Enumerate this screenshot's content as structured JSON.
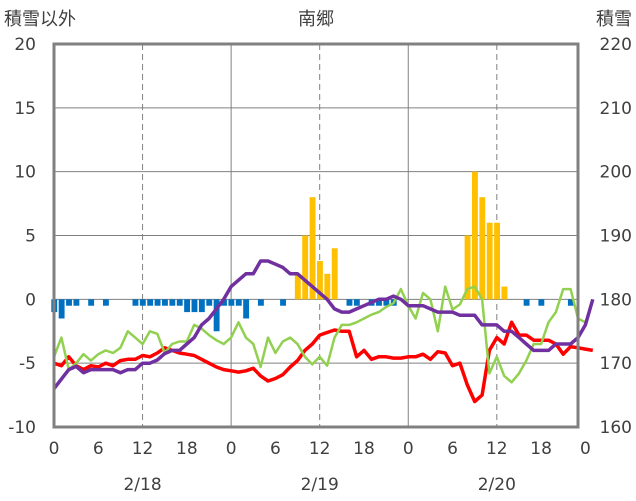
{
  "chart_data": {
    "type": "bar+line",
    "title": "南郷",
    "left_axis_title": "積雪以外",
    "right_axis_title": "積雪",
    "ylim_left": [
      -10,
      20
    ],
    "ylim_right": [
      160,
      220
    ],
    "yticks_left": [
      "20",
      "15",
      "10",
      "5",
      "0",
      "-5",
      "-10"
    ],
    "yticks_right": [
      "220",
      "210",
      "200",
      "190",
      "180",
      "170",
      "160"
    ],
    "xlim_hours": [
      0,
      71
    ],
    "xtick_labels": [
      "0",
      "6",
      "12",
      "18",
      "0",
      "6",
      "12",
      "18",
      "0",
      "6",
      "12",
      "18",
      "0"
    ],
    "date_labels": [
      "2/18",
      "2/19",
      "2/20"
    ],
    "colors": {
      "bar_positive": "#FFC000",
      "bar_negative": "#0070C0",
      "red": "#FF0000",
      "green": "#92D050",
      "purple": "#7030A0"
    },
    "bars": [
      -1,
      -1.5,
      -0.5,
      -0.5,
      0,
      -0.5,
      0,
      -0.5,
      0,
      0,
      0,
      -0.5,
      -0.5,
      -0.5,
      -0.5,
      -0.5,
      -0.5,
      -0.5,
      -1,
      -1,
      -1,
      -0.5,
      -2.5,
      -0.5,
      -0.5,
      -0.5,
      -1.5,
      0,
      -0.5,
      0,
      0,
      -0.5,
      0,
      2,
      5,
      8,
      3,
      2,
      4,
      0,
      -0.5,
      -0.5,
      0,
      -0.5,
      -0.5,
      -0.5,
      -0.5,
      0,
      0,
      0,
      0,
      0,
      0,
      0,
      0,
      0,
      5,
      10,
      8,
      6,
      6,
      1,
      0,
      0,
      -0.5,
      0,
      -0.5,
      0,
      0,
      0,
      -0.5,
      0
    ],
    "series": [
      {
        "color": "red",
        "axis": "left",
        "values": [
          -5,
          -5.2,
          -4.5,
          -5.2,
          -5.5,
          -5.2,
          -5.3,
          -5,
          -5.2,
          -4.8,
          -4.7,
          -4.7,
          -4.4,
          -4.5,
          -4.2,
          -3.8,
          -4,
          -4.2,
          -4.3,
          -4.4,
          -4.7,
          -5,
          -5.3,
          -5.5,
          -5.6,
          -5.7,
          -5.6,
          -5.4,
          -6,
          -6.4,
          -6.2,
          -5.9,
          -5.3,
          -4.8,
          -4,
          -3.5,
          -2.8,
          -2.6,
          -2.4,
          -2.5,
          -2.5,
          -4.5,
          -4,
          -4.7,
          -4.5,
          -4.5,
          -4.6,
          -4.6,
          -4.5,
          -4.5,
          -4.3,
          -4.7,
          -4.1,
          -4.2,
          -5.2,
          -5,
          -6.7,
          -8,
          -7.5,
          -4,
          -3,
          -3.5,
          -1.8,
          -2.8,
          -2.8,
          -3.2,
          -3.2,
          -3.2,
          -3.5,
          -4.3,
          -3.7,
          -3.8,
          -3.9,
          -4
        ]
      },
      {
        "color": "green",
        "axis": "left",
        "values": [
          -4.5,
          -3,
          -5.5,
          -5,
          -4.3,
          -4.8,
          -4.3,
          -4,
          -4.2,
          -3.8,
          -2.5,
          -3,
          -3.5,
          -2.5,
          -2.7,
          -4.2,
          -3.5,
          -3.3,
          -3.3,
          -2,
          -2.3,
          -2.8,
          -3.2,
          -3.5,
          -3,
          -1.8,
          -3,
          -3.5,
          -5.3,
          -3,
          -4.2,
          -3.3,
          -3,
          -3.5,
          -4.5,
          -5.1,
          -4.5,
          -5.2,
          -3,
          -2,
          -2,
          -1.8,
          -1.5,
          -1.2,
          -1,
          -0.6,
          -0.3,
          0.8,
          -0.5,
          -1.5,
          0.5,
          0,
          -2.5,
          1,
          -0.8,
          -0.4,
          0.8,
          1,
          0,
          -5.8,
          -4.5,
          -6,
          -6.5,
          -5.8,
          -4.8,
          -3.5,
          -3.5,
          -1.8,
          -1,
          0.8,
          0.8,
          -1.5,
          -1.8
        ]
      },
      {
        "color": "purple",
        "axis": "right",
        "values": [
          166,
          167.5,
          169,
          169.5,
          168.5,
          169,
          169,
          169,
          169,
          168.5,
          169,
          169,
          170,
          170,
          170.5,
          171.5,
          172,
          172,
          173,
          174,
          176,
          177,
          178.5,
          180,
          182,
          183,
          184,
          184,
          186,
          186,
          185.5,
          185,
          184,
          184,
          183,
          182,
          181,
          180,
          178.5,
          178,
          178,
          178.5,
          179,
          179.5,
          180,
          180,
          180.5,
          180,
          179,
          179,
          179,
          178.5,
          178,
          178,
          178,
          177.5,
          177.5,
          177.5,
          176,
          176,
          176,
          175,
          175,
          174,
          173,
          172,
          172,
          172,
          173,
          173,
          173,
          174,
          176,
          180
        ]
      }
    ]
  }
}
